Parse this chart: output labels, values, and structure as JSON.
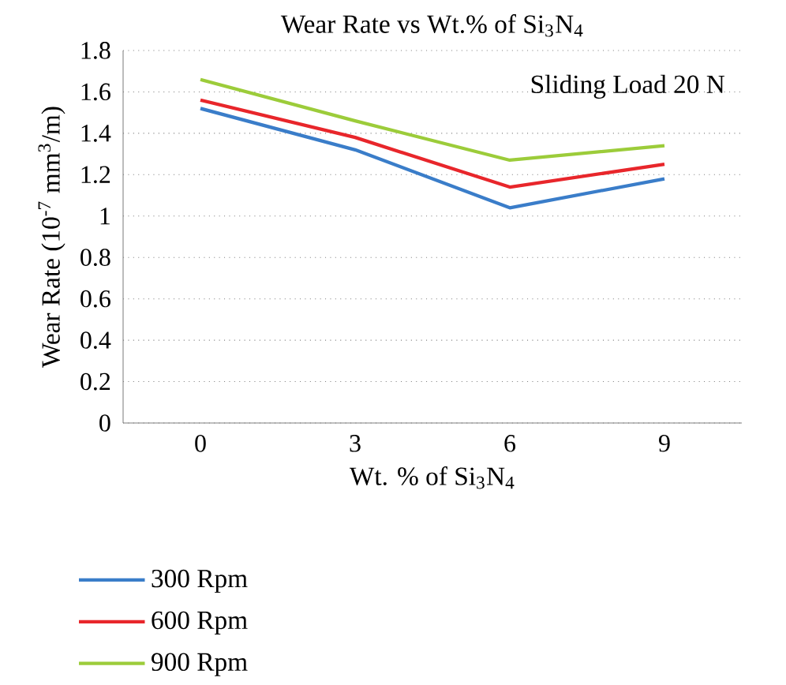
{
  "chart_data": {
    "type": "line",
    "title": "Wear Rate vs Wt.% of Si$_{3}$N$_{4}$",
    "xlabel": "Wt. % of Si$_{3}$N$_{4}$",
    "ylabel": "Wear Rate (10$^{-7}$ mm$^{3}$/m)",
    "categories": [
      "0",
      "3",
      "6",
      "9"
    ],
    "series": [
      {
        "name": "300 Rpm",
        "color": "#3a7dc9",
        "values": [
          1.52,
          1.32,
          1.04,
          1.18
        ]
      },
      {
        "name": "600 Rpm",
        "color": "#e8262b",
        "values": [
          1.56,
          1.38,
          1.14,
          1.25
        ]
      },
      {
        "name": "900 Rpm",
        "color": "#9ccc3a",
        "values": [
          1.66,
          1.46,
          1.27,
          1.34
        ]
      }
    ],
    "ylim": [
      0,
      1.8
    ],
    "yticks": [
      0,
      0.2,
      0.4,
      0.6,
      0.8,
      1,
      1.2,
      1.4,
      1.6,
      1.8
    ],
    "grid": "y",
    "legend": "bottom",
    "line_style": "solid",
    "annotations": [
      "Sliding Load 20 N"
    ]
  }
}
